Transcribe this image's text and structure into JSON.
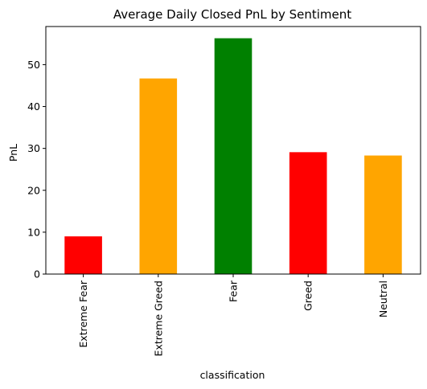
{
  "chart_data": {
    "type": "bar",
    "title": "Average Daily Closed PnL by Sentiment",
    "xlabel": "classification",
    "ylabel": "PnL",
    "categories": [
      "Extreme Fear",
      "Extreme Greed",
      "Fear",
      "Greed",
      "Neutral"
    ],
    "values": [
      9.0,
      46.7,
      56.3,
      29.1,
      28.3
    ],
    "colors": [
      "#ff0000",
      "#ffa500",
      "#008000",
      "#ff0000",
      "#ffa500"
    ],
    "ylim": [
      0,
      59.1
    ],
    "yticks": [
      0,
      10,
      20,
      30,
      40,
      50
    ],
    "ytick_labels": [
      "0",
      "10",
      "20",
      "30",
      "40",
      "50"
    ],
    "grid": false,
    "legend": "none"
  }
}
